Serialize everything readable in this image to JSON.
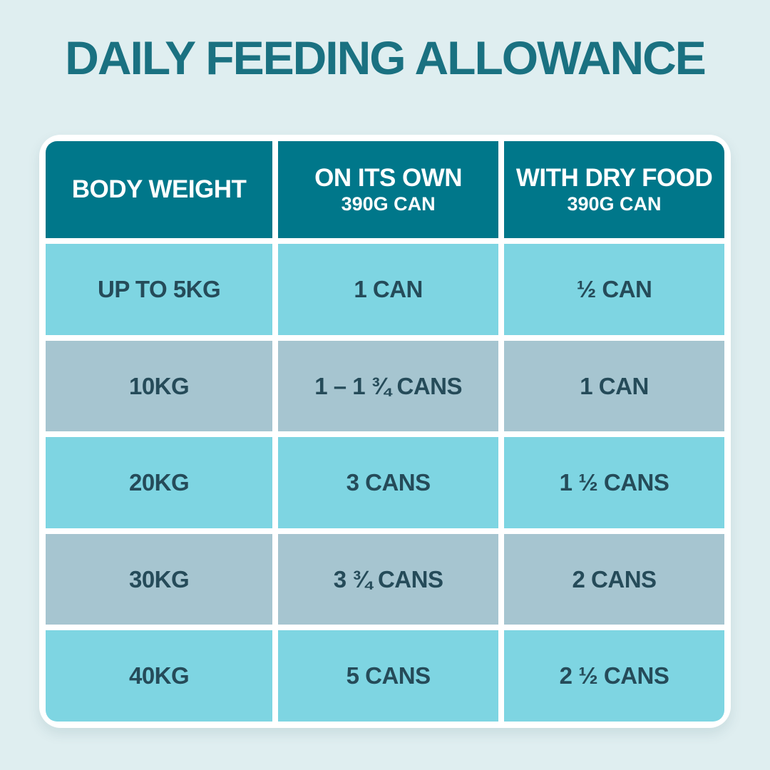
{
  "page": {
    "title": "DAILY FEEDING ALLOWANCE"
  },
  "colors": {
    "background": "#dfeef0",
    "card_frame": "#ffffff",
    "header_bg": "#00778a",
    "header_text": "#ffffff",
    "row_light": "#7ed5e2",
    "row_dark": "#a6c5d0",
    "cell_text": "#254b59",
    "title_text": "#1a7181"
  },
  "table": {
    "columns": [
      {
        "label": "BODY WEIGHT",
        "sublabel": ""
      },
      {
        "label": "ON ITS OWN",
        "sublabel": "390G CAN"
      },
      {
        "label": "WITH DRY FOOD",
        "sublabel": "390G CAN"
      }
    ],
    "rows": [
      {
        "body_weight": "UP TO 5KG",
        "on_its_own": "1 CAN",
        "with_dry_food": "½ CAN"
      },
      {
        "body_weight": "10KG",
        "on_its_own": "1 – 1 ¾ CANS",
        "with_dry_food": "1 CAN"
      },
      {
        "body_weight": "20KG",
        "on_its_own": "3 CANS",
        "with_dry_food": "1 ½ CANS"
      },
      {
        "body_weight": "30KG",
        "on_its_own": "3 ¾ CANS",
        "with_dry_food": "2 CANS"
      },
      {
        "body_weight": "40KG",
        "on_its_own": "5 CANS",
        "with_dry_food": "2 ½ CANS"
      }
    ]
  },
  "chart_data": {
    "type": "table",
    "title": "DAILY FEEDING ALLOWANCE",
    "columns": [
      "BODY WEIGHT",
      "ON ITS OWN (390G CAN)",
      "WITH DRY FOOD (390G CAN)"
    ],
    "rows": [
      [
        "UP TO 5KG",
        "1 CAN",
        "½ CAN"
      ],
      [
        "10KG",
        "1 – 1 ¾ CANS",
        "1 CAN"
      ],
      [
        "20KG",
        "3 CANS",
        "1 ½ CANS"
      ],
      [
        "30KG",
        "3 ¾ CANS",
        "2 CANS"
      ],
      [
        "40KG",
        "5 CANS",
        "2 ½ CANS"
      ]
    ]
  }
}
